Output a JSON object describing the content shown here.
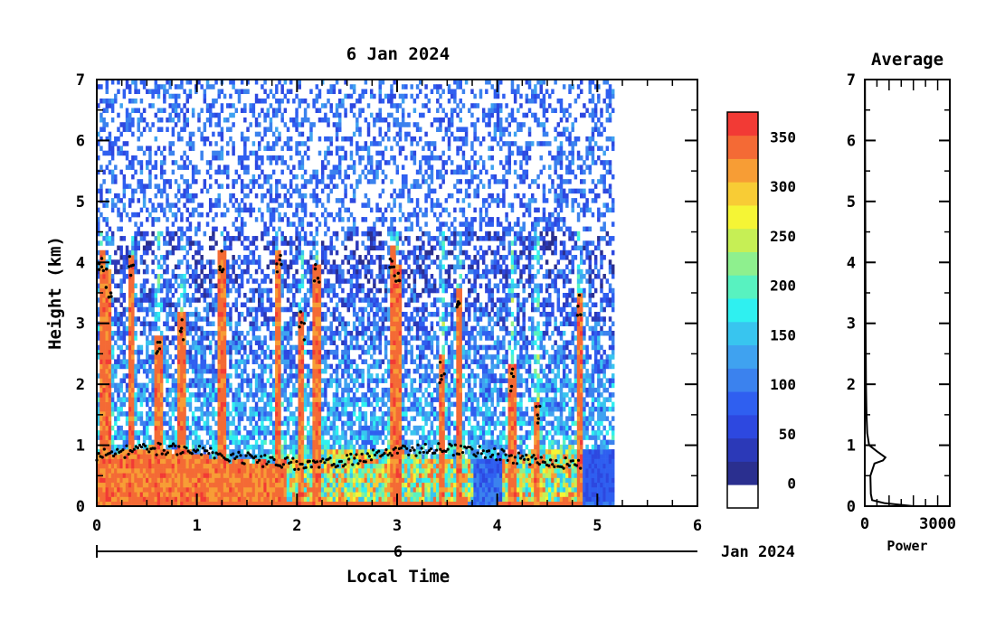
{
  "chart_data": [
    {
      "type": "heatmap",
      "title": "6 Jan 2024",
      "xlabel": "Local Time",
      "ylabel": "Height (km)",
      "xlim": [
        0,
        6
      ],
      "ylim": [
        0,
        7
      ],
      "x_ticks": [
        "0",
        "1",
        "2",
        "3",
        "4",
        "5",
        "6"
      ],
      "y_ticks": [
        "0",
        "1",
        "2",
        "3",
        "4",
        "5",
        "6",
        "7"
      ],
      "date_axis": {
        "day_label": "6",
        "month_label": "Jan 2024"
      },
      "data_extent_hours": 5.17,
      "colorbar": {
        "ticks": [
          "0",
          "50",
          "100",
          "150",
          "200",
          "250",
          "300",
          "350"
        ],
        "tick_values": [
          0,
          50,
          100,
          150,
          200,
          250,
          300,
          350
        ],
        "range": [
          -25,
          375
        ],
        "step": 25,
        "colors": [
          "#ffffff",
          "#2a2f8f",
          "#2b39b8",
          "#2d48e0",
          "#2f5ff0",
          "#3b82ee",
          "#3fa2f0",
          "#38c5ef",
          "#2ff0f0",
          "#58f2c0",
          "#8ef08e",
          "#c6ef55",
          "#f5f535",
          "#f8cc35",
          "#f79d35",
          "#f46a35",
          "#f23a35"
        ]
      },
      "strong_echo_columns": [
        {
          "t": 0.05,
          "top": 4.2
        },
        {
          "t": 0.12,
          "top": 3.9
        },
        {
          "t": 0.35,
          "top": 4.1
        },
        {
          "t": 0.62,
          "top": 2.8
        },
        {
          "t": 0.85,
          "top": 3.2
        },
        {
          "t": 1.25,
          "top": 4.2
        },
        {
          "t": 1.82,
          "top": 4.2
        },
        {
          "t": 2.05,
          "top": 3.2
        },
        {
          "t": 2.2,
          "top": 4.0
        },
        {
          "t": 2.95,
          "top": 4.3
        },
        {
          "t": 3.0,
          "top": 4.0
        },
        {
          "t": 3.45,
          "top": 2.5
        },
        {
          "t": 3.62,
          "top": 3.6
        },
        {
          "t": 4.15,
          "top": 2.3
        },
        {
          "t": 4.4,
          "top": 1.7
        },
        {
          "t": 4.82,
          "top": 3.5
        }
      ]
    },
    {
      "type": "line",
      "title": "Average",
      "xlabel": "Power",
      "xlim": [
        0,
        3500
      ],
      "ylim": [
        0,
        7
      ],
      "x_ticks": [
        "0",
        "3000"
      ],
      "x_tick_values": [
        0,
        3000
      ],
      "y_ticks": [
        "0",
        "1",
        "2",
        "3",
        "4",
        "5",
        "6",
        "7"
      ],
      "profile": [
        {
          "h": 0.0,
          "p": 2000
        },
        {
          "h": 0.05,
          "p": 800
        },
        {
          "h": 0.1,
          "p": 300
        },
        {
          "h": 0.2,
          "p": 250
        },
        {
          "h": 0.5,
          "p": 230
        },
        {
          "h": 0.7,
          "p": 400
        },
        {
          "h": 0.75,
          "p": 750
        },
        {
          "h": 0.8,
          "p": 850
        },
        {
          "h": 0.9,
          "p": 500
        },
        {
          "h": 1.0,
          "p": 180
        },
        {
          "h": 1.2,
          "p": 100
        },
        {
          "h": 1.5,
          "p": 70
        },
        {
          "h": 2.0,
          "p": 50
        },
        {
          "h": 3.0,
          "p": 35
        },
        {
          "h": 4.0,
          "p": 25
        },
        {
          "h": 5.0,
          "p": 18
        },
        {
          "h": 6.0,
          "p": 12
        },
        {
          "h": 7.0,
          "p": 8
        }
      ]
    }
  ]
}
